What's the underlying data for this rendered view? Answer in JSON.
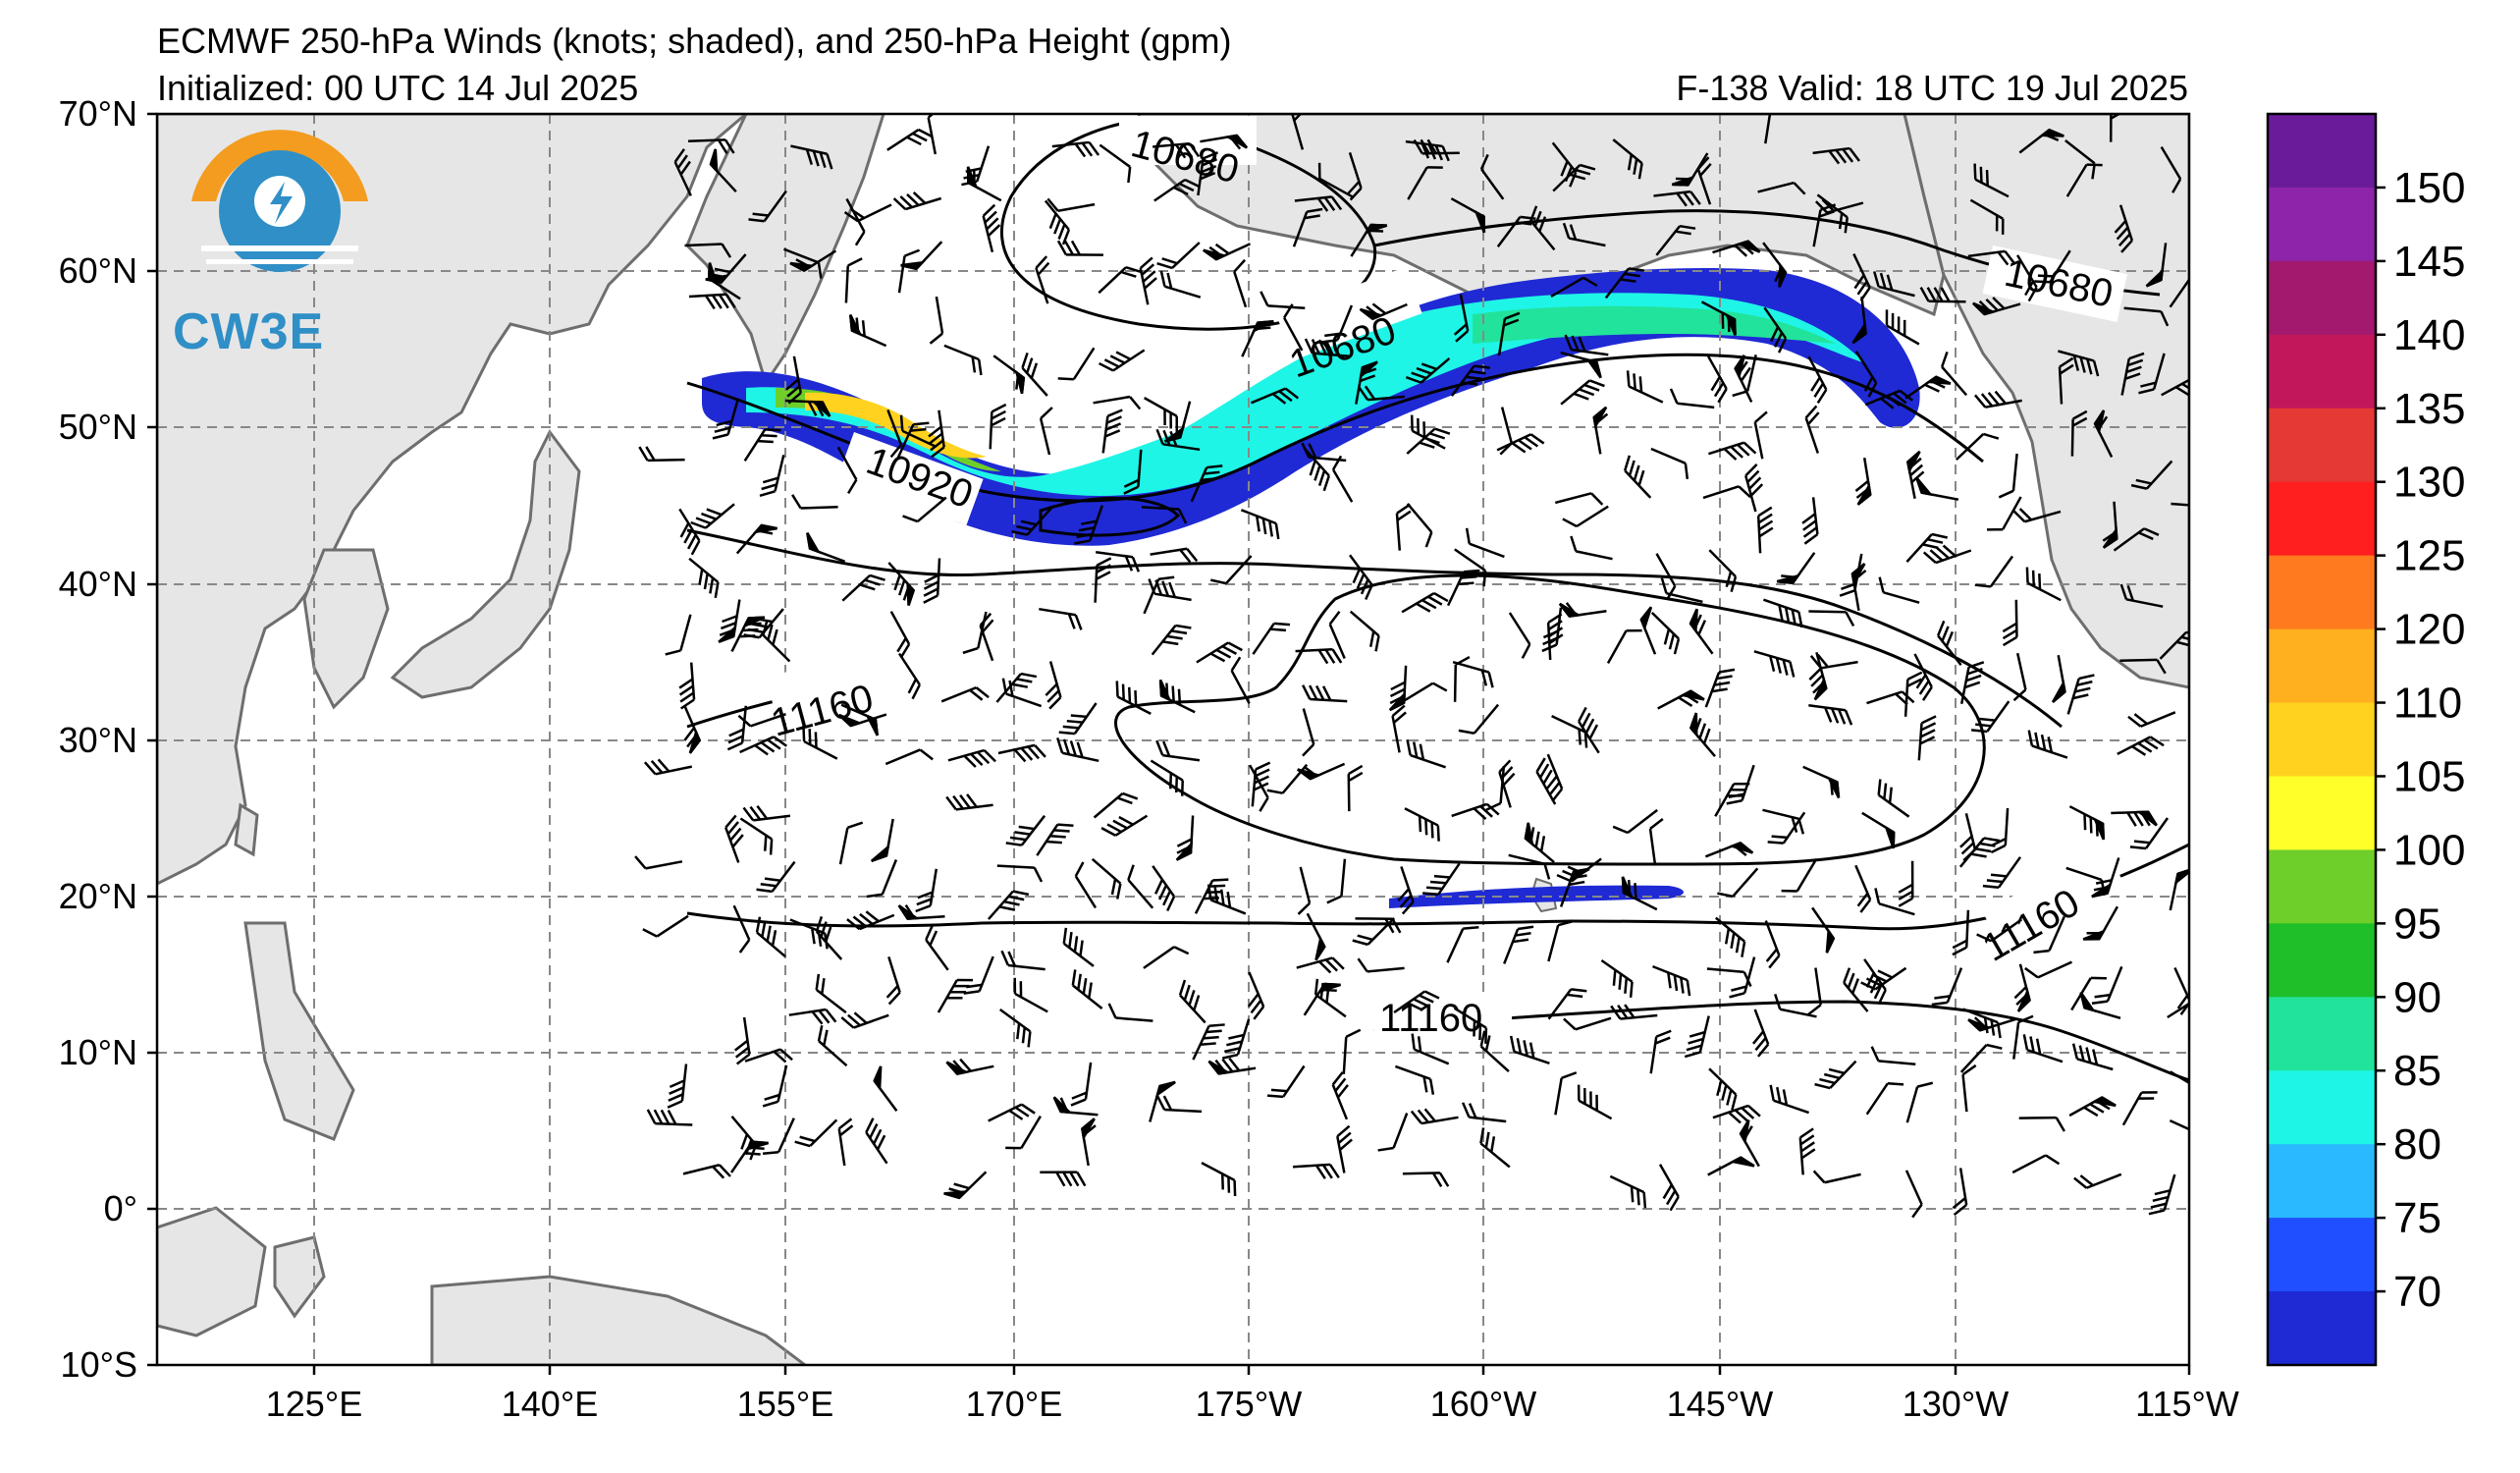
{
  "title_line1": "ECMWF 250-hPa Winds (knots; shaded), and 250-hPa Height (gpm)",
  "title_line2": "Initialized: 00 UTC 14 Jul 2025",
  "valid_text": "F-138  Valid: 18 UTC 19 Jul 2025",
  "logo_text": "CW3E",
  "lat_labels": [
    "70°N",
    "60°N",
    "50°N",
    "40°N",
    "30°N",
    "20°N",
    "10°N",
    "0°",
    "10°S"
  ],
  "lon_labels": [
    "125°E",
    "140°E",
    "155°E",
    "170°E",
    "175°W",
    "160°W",
    "145°W",
    "130°W",
    "115°W"
  ],
  "contour_labels": [
    "10680",
    "10680",
    "10680",
    "10920",
    "11160",
    "11160",
    "11160"
  ],
  "colorbar": {
    "ticks": [
      "150",
      "145",
      "140",
      "135",
      "130",
      "125",
      "120",
      "110",
      "105",
      "100",
      "95",
      "90",
      "85",
      "80",
      "75",
      "70"
    ],
    "colors": [
      "#6a1b9a",
      "#8e24aa",
      "#a3196e",
      "#c2185b",
      "#e53935",
      "#ff1f1f",
      "#ff7a1f",
      "#ffb01f",
      "#ffd21f",
      "#ffff2a",
      "#6fcf2a",
      "#1fbf2a",
      "#22e39b",
      "#1ff5e6",
      "#2ab9ff",
      "#1f4fff",
      "#1f2ad4"
    ]
  },
  "colors": {
    "land": "#e6e6e6",
    "coast": "#6e6e6e",
    "grid": "#888888",
    "logo_orange": "#f39c1f",
    "logo_blue": "#2f8fc6"
  }
}
